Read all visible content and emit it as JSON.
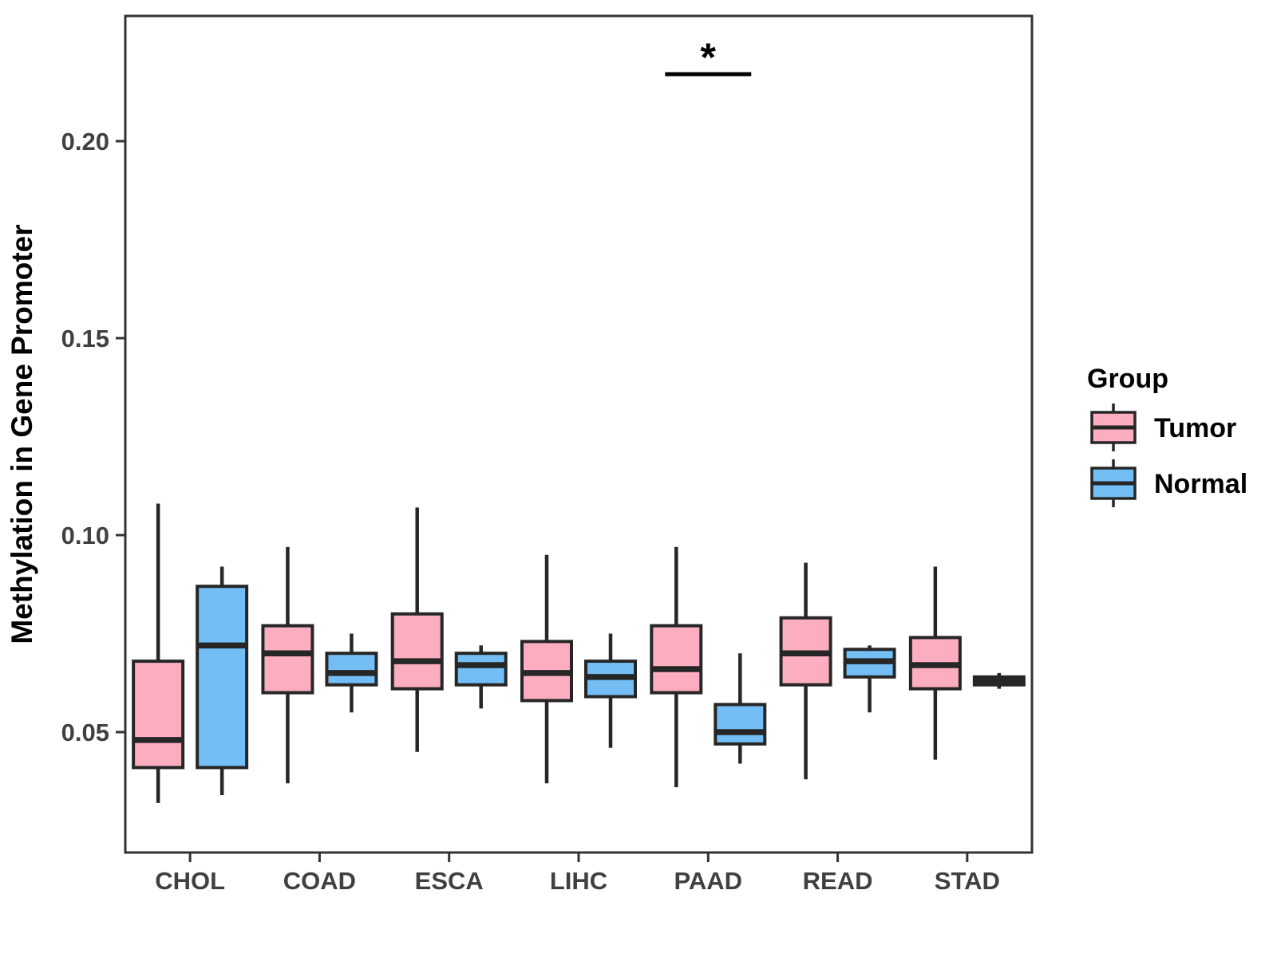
{
  "figure": {
    "background": "#FFFFFF"
  },
  "chart_data": {
    "type": "boxplot",
    "title": "",
    "xlabel": "",
    "ylabel": "Methylation in Gene Promoter",
    "categories": [
      "CHOL",
      "COAD",
      "ESCA",
      "LIHC",
      "PAAD",
      "READ",
      "STAD"
    ],
    "ylim": [
      0.02,
      0.232
    ],
    "yticks": [
      0.05,
      0.1,
      0.15,
      0.2
    ],
    "ytick_labels": [
      "0.05",
      "0.10",
      "0.15",
      "0.20"
    ],
    "grid": "off",
    "legend": {
      "title": "Group",
      "position": "right",
      "entries": [
        "Tumor",
        "Normal"
      ]
    },
    "groups": [
      {
        "name": "Tumor",
        "fill": "#FCAEC0"
      },
      {
        "name": "Normal",
        "fill": "#73BEF4"
      }
    ],
    "series": [
      {
        "name": "Tumor",
        "fill": "#FCAEC0",
        "boxes": [
          {
            "category": "CHOL",
            "min": 0.032,
            "q1": 0.041,
            "median": 0.048,
            "q3": 0.068,
            "max": 0.108
          },
          {
            "category": "COAD",
            "min": 0.037,
            "q1": 0.06,
            "median": 0.07,
            "q3": 0.077,
            "max": 0.097
          },
          {
            "category": "ESCA",
            "min": 0.045,
            "q1": 0.061,
            "median": 0.068,
            "q3": 0.08,
            "max": 0.107
          },
          {
            "category": "LIHC",
            "min": 0.037,
            "q1": 0.058,
            "median": 0.065,
            "q3": 0.073,
            "max": 0.095
          },
          {
            "category": "PAAD",
            "min": 0.036,
            "q1": 0.06,
            "median": 0.066,
            "q3": 0.077,
            "max": 0.097
          },
          {
            "category": "READ",
            "min": 0.038,
            "q1": 0.062,
            "median": 0.07,
            "q3": 0.079,
            "max": 0.093
          },
          {
            "category": "STAD",
            "min": 0.043,
            "q1": 0.061,
            "median": 0.067,
            "q3": 0.074,
            "max": 0.092
          }
        ]
      },
      {
        "name": "Normal",
        "fill": "#73BEF4",
        "boxes": [
          {
            "category": "CHOL",
            "min": 0.034,
            "q1": 0.041,
            "median": 0.072,
            "q3": 0.087,
            "max": 0.092
          },
          {
            "category": "COAD",
            "min": 0.055,
            "q1": 0.062,
            "median": 0.065,
            "q3": 0.07,
            "max": 0.075
          },
          {
            "category": "ESCA",
            "min": 0.056,
            "q1": 0.062,
            "median": 0.067,
            "q3": 0.07,
            "max": 0.072
          },
          {
            "category": "LIHC",
            "min": 0.046,
            "q1": 0.059,
            "median": 0.064,
            "q3": 0.068,
            "max": 0.075
          },
          {
            "category": "PAAD",
            "min": 0.042,
            "q1": 0.047,
            "median": 0.05,
            "q3": 0.057,
            "max": 0.07
          },
          {
            "category": "READ",
            "min": 0.055,
            "q1": 0.064,
            "median": 0.068,
            "q3": 0.071,
            "max": 0.072
          },
          {
            "category": "STAD",
            "min": 0.061,
            "q1": 0.062,
            "median": 0.063,
            "q3": 0.064,
            "max": 0.065
          }
        ]
      }
    ],
    "significance": {
      "category": "PAAD",
      "between": [
        "Tumor",
        "Normal"
      ],
      "label": "*",
      "bar_value": 0.217
    }
  },
  "style": {
    "box_stroke": "#262626",
    "axis_text_color": "#404040",
    "axis_title_color": "#000000",
    "legend_text_color": "#000000",
    "panel_border_color": "#333333",
    "significance_color": "#000000"
  }
}
